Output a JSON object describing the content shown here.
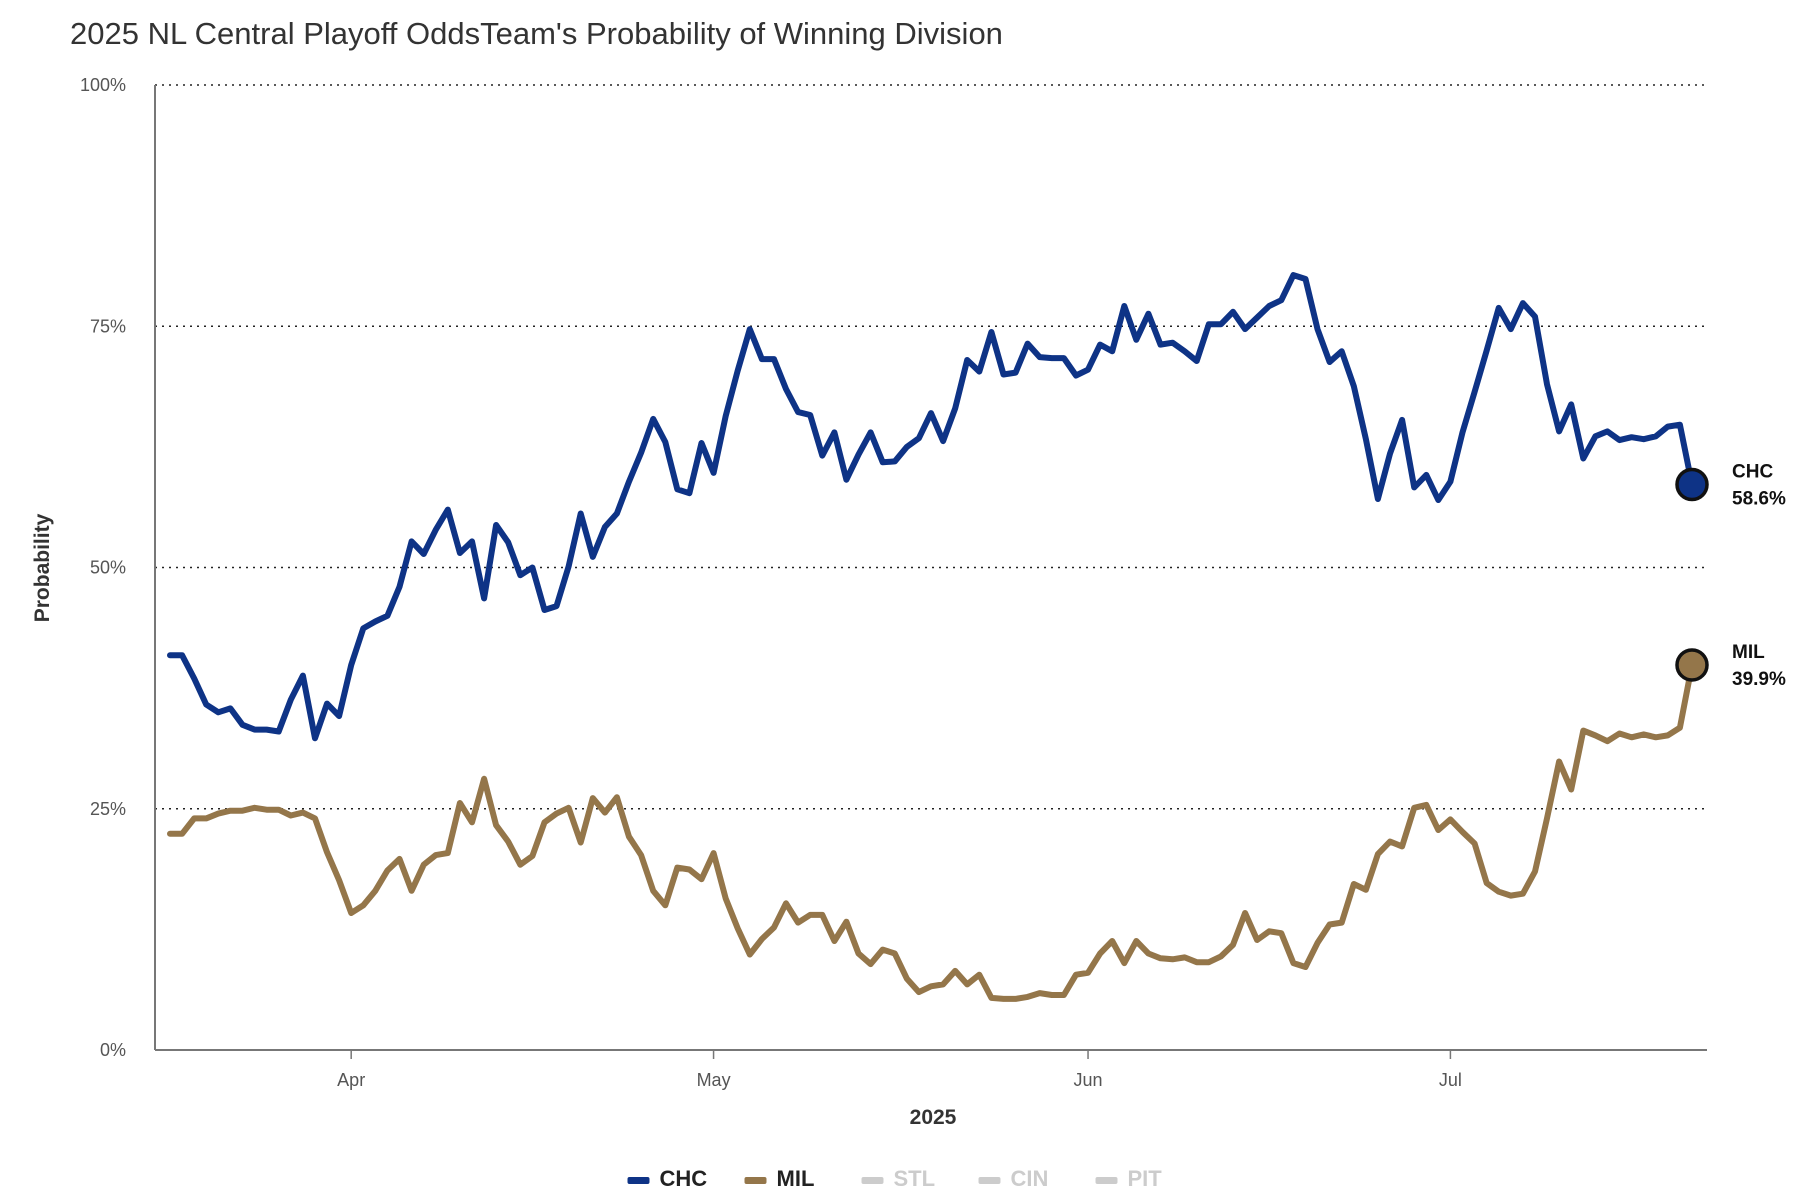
{
  "title": "2025 NL Central Playoff OddsTeam's Probability of Winning Division",
  "chart_data": {
    "type": "line",
    "title": "2025 NL Central Playoff OddsTeam's Probability of Winning Division",
    "xlabel": "2025",
    "ylabel": "Probability",
    "ylim": [
      0,
      100
    ],
    "xlim": [
      0,
      126
    ],
    "x_ticks": [
      {
        "label": "Apr",
        "x": 15
      },
      {
        "label": "May",
        "x": 45
      },
      {
        "label": "Jun",
        "x": 76
      },
      {
        "label": "Jul",
        "x": 106
      }
    ],
    "y_ticks": [
      {
        "label": "0%",
        "value": 0
      },
      {
        "label": "25%",
        "value": 25
      },
      {
        "label": "50%",
        "value": 50
      },
      {
        "label": "75%",
        "value": 75
      },
      {
        "label": "100%",
        "value": 100
      }
    ],
    "grid": true,
    "legend_position": "bottom",
    "series": [
      {
        "name": "CHC",
        "color": "#0e3386",
        "visible": true,
        "end_label": "CHC",
        "end_value_label": "58.6%",
        "values": [
          40.9,
          40.9,
          38.5,
          35.8,
          35.0,
          35.4,
          33.7,
          33.2,
          33.2,
          33.0,
          36.3,
          38.8,
          32.3,
          35.9,
          34.6,
          39.9,
          43.7,
          44.4,
          45.0,
          48.0,
          52.7,
          51.4,
          53.9,
          56.0,
          51.5,
          52.7,
          46.8,
          54.4,
          52.6,
          49.2,
          50.0,
          45.6,
          46.0,
          50.1,
          55.6,
          51.1,
          54.2,
          55.6,
          58.9,
          61.9,
          65.4,
          63.0,
          58.1,
          57.7,
          62.9,
          59.8,
          65.7,
          70.4,
          74.7,
          71.6,
          71.6,
          68.5,
          66.1,
          65.8,
          61.6,
          64.0,
          59.1,
          61.7,
          64.0,
          60.9,
          61.0,
          62.5,
          63.4,
          66.0,
          63.1,
          66.5,
          71.5,
          70.3,
          74.4,
          70.0,
          70.2,
          73.2,
          71.8,
          71.7,
          71.7,
          69.9,
          70.5,
          73.1,
          72.4,
          77.1,
          73.6,
          76.3,
          73.1,
          73.3,
          72.4,
          71.4,
          75.2,
          75.2,
          76.5,
          74.7,
          75.9,
          77.1,
          77.7,
          80.3,
          79.9,
          74.7,
          71.3,
          72.4,
          68.8,
          63.3,
          57.1,
          61.8,
          65.3,
          58.3,
          59.6,
          57.0,
          58.9,
          64.0,
          68.2,
          72.5,
          76.9,
          74.7,
          77.4,
          76.0,
          69.0,
          64.1,
          66.9,
          61.3,
          63.6,
          64.1,
          63.2,
          63.5,
          63.3,
          63.6,
          64.6,
          64.8,
          58.6
        ]
      },
      {
        "name": "MIL",
        "color": "#94764a",
        "visible": true,
        "end_label": "MIL",
        "end_value_label": "39.9%",
        "values": [
          22.4,
          22.4,
          24.0,
          24.0,
          24.5,
          24.8,
          24.8,
          25.1,
          24.9,
          24.9,
          24.3,
          24.6,
          24.0,
          20.5,
          17.6,
          14.2,
          15.0,
          16.5,
          18.6,
          19.8,
          16.5,
          19.2,
          20.2,
          20.4,
          25.6,
          23.6,
          28.1,
          23.3,
          21.6,
          19.2,
          20.1,
          23.6,
          24.5,
          25.1,
          21.5,
          26.1,
          24.6,
          26.2,
          22.1,
          20.2,
          16.5,
          15.0,
          18.9,
          18.7,
          17.7,
          20.4,
          15.7,
          12.6,
          9.9,
          11.5,
          12.7,
          15.2,
          13.2,
          14.0,
          14.0,
          11.3,
          13.3,
          10.0,
          8.9,
          10.4,
          10.0,
          7.4,
          6.0,
          6.6,
          6.8,
          8.2,
          6.8,
          7.8,
          5.4,
          5.3,
          5.3,
          5.5,
          5.9,
          5.7,
          5.7,
          7.8,
          8.0,
          10.0,
          11.3,
          9.0,
          11.3,
          10.0,
          9.5,
          9.4,
          9.6,
          9.1,
          9.1,
          9.7,
          10.9,
          14.2,
          11.4,
          12.3,
          12.1,
          9.0,
          8.6,
          11.1,
          13.0,
          13.2,
          17.2,
          16.6,
          20.3,
          21.6,
          21.1,
          25.1,
          25.4,
          22.8,
          23.9,
          22.6,
          21.4,
          17.3,
          16.4,
          16.0,
          16.2,
          18.5,
          24.0,
          29.9,
          27.0,
          33.1,
          32.6,
          32.0,
          32.8,
          32.4,
          32.7,
          32.4,
          32.6,
          33.4,
          39.9
        ]
      },
      {
        "name": "STL",
        "color": "#c41e3a",
        "visible": false
      },
      {
        "name": "CIN",
        "color": "#c6011f",
        "visible": false
      },
      {
        "name": "PIT",
        "color": "#fdb827",
        "visible": false
      }
    ]
  },
  "legend": {
    "items": [
      {
        "label": "CHC",
        "color": "#0e3386",
        "active": true
      },
      {
        "label": "MIL",
        "color": "#94764a",
        "active": true
      },
      {
        "label": "STL",
        "color": "#cccccc",
        "active": false
      },
      {
        "label": "CIN",
        "color": "#cccccc",
        "active": false
      },
      {
        "label": "PIT",
        "color": "#cccccc",
        "active": false
      }
    ]
  }
}
